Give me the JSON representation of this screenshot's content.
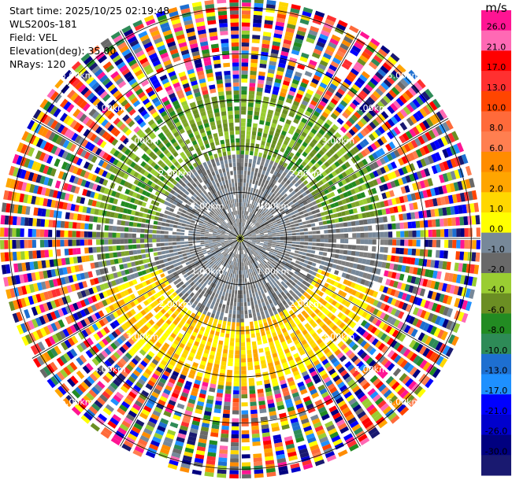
{
  "header": {
    "start_time": "Start time: 2025/10/25 02:19:48",
    "instrument": "WLS200s-181",
    "field": "Field: VEL",
    "elevation": "Elevation(deg): 35.00",
    "nrays": "NRays: 120"
  },
  "chart_data": {
    "type": "heatmap",
    "projection": "polar (PPI scan)",
    "field": "VEL",
    "elevation_deg": 35.0,
    "n_rays": 120,
    "range_rings_km": [
      1.0,
      2.0,
      3.0,
      4.0,
      5.0
    ],
    "range_ring_labels": [
      "1.00km",
      "2.00km",
      "3.00km",
      "4.00km",
      "5.00km"
    ],
    "radial_lines_every_deg": 30,
    "colorbar": {
      "unit": "m/s",
      "ticks": [
        "26.0",
        "21.0",
        "17.0",
        "13.0",
        "10.0",
        "8.0",
        "6.0",
        "4.0",
        "2.0",
        "1.0",
        "0.0",
        "-1.0",
        "-2.0",
        "-4.0",
        "-6.0",
        "-8.0",
        "-10.0",
        "-13.0",
        "-17.0",
        "-21.0",
        "-26.0",
        "-30.0"
      ],
      "colors": [
        "#ff1493",
        "#ff69b4",
        "#ff0000",
        "#ff3030",
        "#ff4500",
        "#ff6a3a",
        "#ff7f50",
        "#ff8c00",
        "#ffa500",
        "#ffd700",
        "#ffff00",
        "#778899",
        "#696969",
        "#9acd32",
        "#6b8e23",
        "#228b22",
        "#2e8b57",
        "#1e6fd0",
        "#1e90ff",
        "#0000ff",
        "#0000cd",
        "#000080",
        "#191970"
      ]
    },
    "regions": [
      {
        "range_km": [
          0.0,
          1.8
        ],
        "velocity_ms": [
          -1.0,
          1.0
        ],
        "description": "gray near-zero core"
      },
      {
        "range_km": [
          1.8,
          3.2
        ],
        "azimuth_deg": [
          270,
          90
        ],
        "velocity_ms": [
          -8.0,
          -1.0
        ],
        "description": "green approaching (north)"
      },
      {
        "range_km": [
          1.8,
          3.2
        ],
        "azimuth_deg": [
          100,
          260
        ],
        "velocity_ms": [
          2.0,
          6.0
        ],
        "description": "yellow receding (south)"
      },
      {
        "range_km": [
          3.2,
          5.2
        ],
        "velocity_ms": [
          -30.0,
          26.0
        ],
        "description": "noise / folded"
      }
    ]
  }
}
